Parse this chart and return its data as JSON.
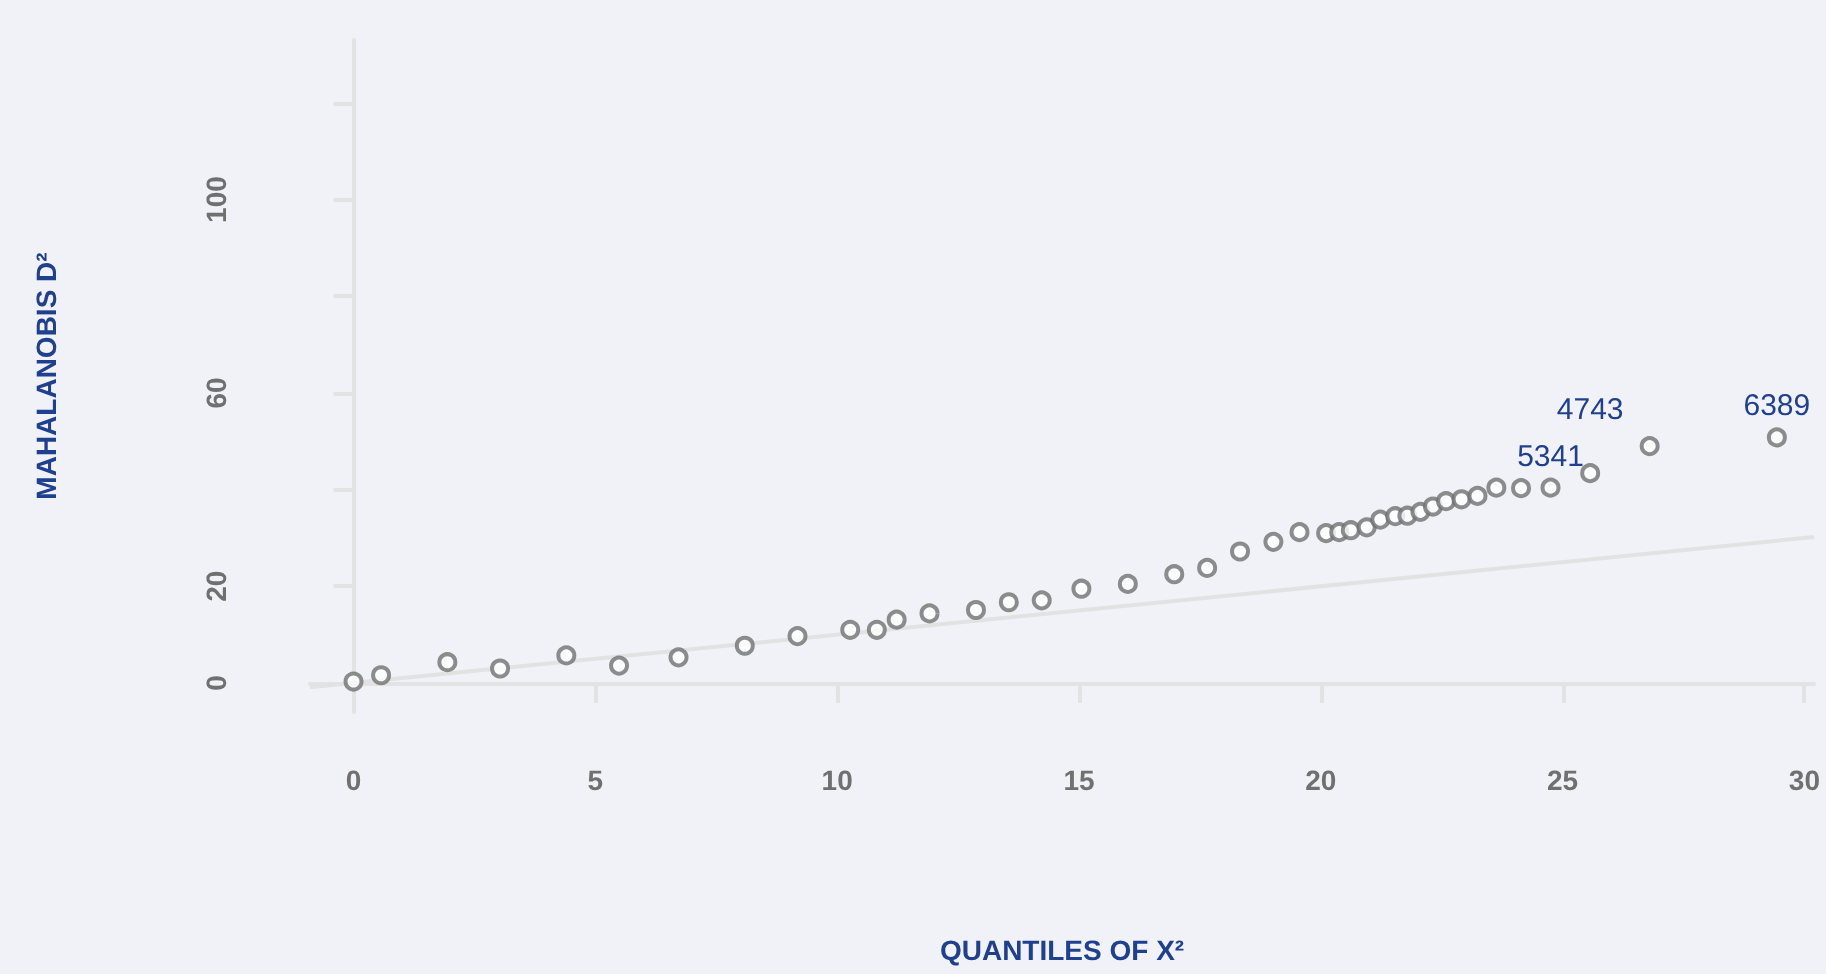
{
  "chart_data": {
    "type": "scatter",
    "xlabel": "QUANTILES OF X²",
    "ylabel": "MAHALANOBIS D²",
    "xlim": [
      -0.9,
      30.2
    ],
    "ylim": [
      -6,
      133
    ],
    "xticks": [
      0,
      5,
      10,
      15,
      20,
      25,
      30
    ],
    "yticks": [
      0,
      20,
      {
        "value": 40,
        "label": null
      },
      60,
      {
        "value": 80,
        "label": null
      },
      100,
      {
        "value": 120,
        "label": null
      }
    ],
    "marker": "circle",
    "series": [
      {
        "type": "line",
        "color": "#e2e2e2",
        "marker": "none",
        "x": [
          -0.9,
          30.2
        ],
        "values": [
          -0.9,
          30.2
        ]
      },
      {
        "color": "#707070",
        "x": [
          0,
          0.57,
          1.94,
          3.03,
          4.4,
          5.49,
          6.72,
          8.09,
          9.18,
          10.27,
          10.82,
          11.23,
          11.91,
          12.87,
          13.55,
          14.23,
          15.05,
          16.01,
          16.97,
          17.65,
          18.33,
          19.02,
          19.56,
          20.11,
          20.38,
          20.62,
          20.95,
          21.23,
          21.54,
          21.79,
          22.06,
          22.32,
          22.59,
          22.91,
          23.24,
          23.63,
          24.14,
          24.75,
          25.57,
          26.8,
          29.43
        ],
        "values": [
          0.3,
          1.6,
          4.3,
          3.0,
          5.7,
          3.6,
          5.3,
          7.7,
          9.7,
          11.0,
          11.0,
          13.1,
          14.4,
          15.1,
          16.7,
          17.1,
          19.5,
          20.5,
          22.5,
          23.8,
          27.2,
          29.2,
          31.2,
          31.0,
          31.2,
          31.6,
          32.2,
          33.8,
          34.5,
          34.6,
          35.4,
          36.5,
          37.6,
          38.0,
          38.7,
          40.4,
          40.3,
          40.4,
          43.4,
          49.0,
          50.8
        ]
      }
    ],
    "annotations": [
      {
        "text": "5341",
        "x": 24.75,
        "y": 40.4
      },
      {
        "text": "4743",
        "x": 25.57,
        "y": 43.4
      },
      {
        "text": "6389",
        "x": 29.43,
        "y": 50.8
      }
    ]
  }
}
